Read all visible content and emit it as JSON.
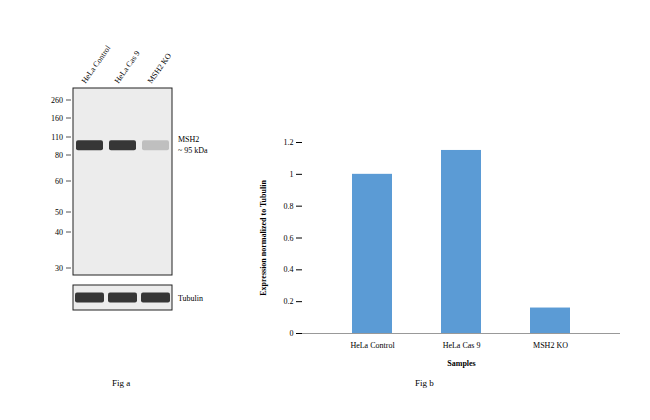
{
  "blot": {
    "caption": "Fig a",
    "lanes": [
      "HeLa Control",
      "HeLa Cas 9",
      "MSH2 KO"
    ],
    "markers": [
      260,
      160,
      110,
      80,
      60,
      50,
      40,
      30
    ],
    "target": {
      "name": "MSH2",
      "label": "~ 95 kDa",
      "kda": 95,
      "band_intensity": [
        1,
        1,
        0.25
      ]
    },
    "loading_control": {
      "name": "Tubulin",
      "band_intensity": [
        1,
        1,
        1
      ]
    }
  },
  "chart_data": {
    "type": "bar",
    "caption": "Fig b",
    "x_label": "Samples",
    "y_label": "Expression normalized to Tubulin",
    "categories": [
      "HeLa Control",
      "HeLa Cas 9",
      "MSH2 KO"
    ],
    "values": [
      1.0,
      1.15,
      0.16
    ],
    "color": "#5b9bd5",
    "ylim": [
      0,
      1.2
    ],
    "yticks": [
      0,
      0.2,
      0.4,
      0.6,
      0.8,
      1,
      1.2
    ],
    "grid": false
  }
}
